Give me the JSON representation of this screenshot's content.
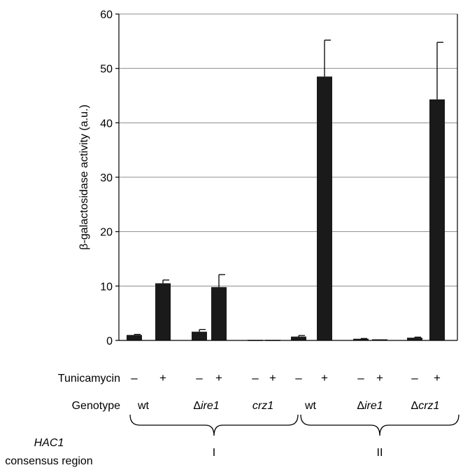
{
  "chart_data": {
    "type": "bar",
    "ylabel": "β-galactosidase activity (a.u.)",
    "ylim": [
      0,
      60
    ],
    "yticks": [
      "0",
      "10",
      "20",
      "30",
      "40",
      "50",
      "60"
    ],
    "grid": true,
    "categories": [
      "I wt −",
      "I wt +",
      "I Δire1 −",
      "I Δire1 +",
      "I crz1 −",
      "I crz1 +",
      "II wt −",
      "II wt +",
      "II Δire1 −",
      "II Δire1 +",
      "II Δcrz1 −",
      "II Δcrz1 +"
    ],
    "values": [
      1.0,
      10.5,
      1.6,
      9.8,
      0.1,
      0.1,
      0.7,
      48.5,
      0.3,
      0.2,
      0.5,
      44.3
    ],
    "errors": [
      0.1,
      0.6,
      0.4,
      2.3,
      0.05,
      0.05,
      0.2,
      6.7,
      0.05,
      0.05,
      0.1,
      10.5
    ],
    "tunicamycin_label": "Tunicamycin",
    "tunicamycin_signs": [
      "–",
      "+",
      "–",
      "+",
      "–",
      "+",
      "–",
      "+",
      "–",
      "+",
      "–",
      "+"
    ],
    "genotype_label": "Genotype",
    "genotypes": [
      {
        "prefix": "",
        "name": "wt",
        "italic": false
      },
      {
        "prefix": "Δ",
        "name": "ire1",
        "italic": true
      },
      {
        "prefix": "",
        "name": "crz1",
        "italic": true
      },
      {
        "prefix": "",
        "name": "wt",
        "italic": false
      },
      {
        "prefix": "Δ",
        "name": "ire1",
        "italic": true
      },
      {
        "prefix": "Δ",
        "name": "crz1",
        "italic": true
      }
    ],
    "region_label_line1": "HAC1",
    "region_label_line2": "consensus region",
    "regions": [
      "I",
      "II"
    ],
    "colors": {
      "bar": "#1a1a1a",
      "grid": "#8c8c8c",
      "axis": "#000000"
    }
  }
}
